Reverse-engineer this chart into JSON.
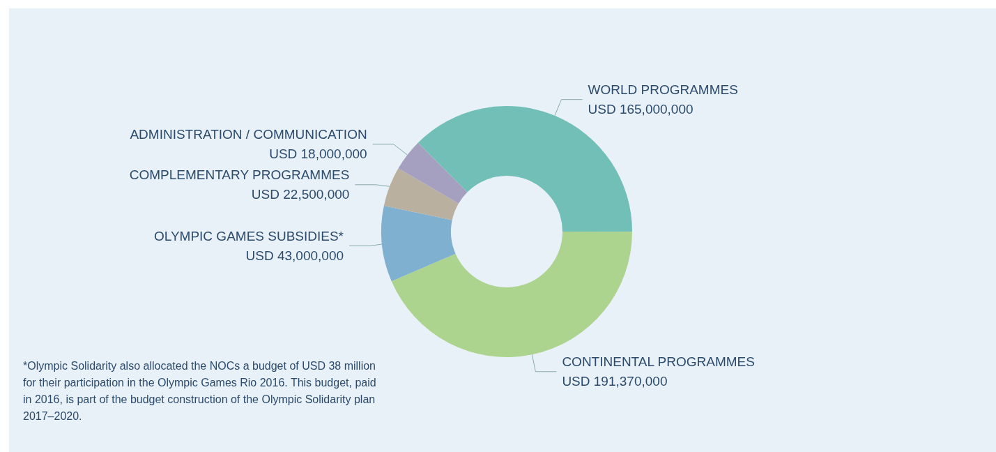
{
  "chart_data": {
    "type": "donut",
    "categories": [
      "WORLD PROGRAMMES",
      "CONTINENTAL PROGRAMMES",
      "OLYMPIC GAMES SUBSIDIES*",
      "COMPLEMENTARY PROGRAMMES",
      "ADMINISTRATION / COMMUNICATION"
    ],
    "values": [
      165000000,
      191370000,
      43000000,
      22500000,
      18000000
    ],
    "value_labels": [
      "USD 165,000,000",
      "USD 191,370,000",
      "USD 43,000,000",
      "USD 22,500,000",
      "USD 18,000,000"
    ],
    "colors": [
      "#72bfb8",
      "#acd48e",
      "#7fb0cf",
      "#b9b0a0",
      "#a59fc0"
    ],
    "legend": false,
    "annotations": [
      "*Olympic Solidarity also allocated the NOCs a budget of USD 38 million for their participation in the Olympic Games Rio 2016. This budget, paid in 2016, is part of the budget construction of the Olympic Solidarity plan 2017–2020."
    ]
  }
}
